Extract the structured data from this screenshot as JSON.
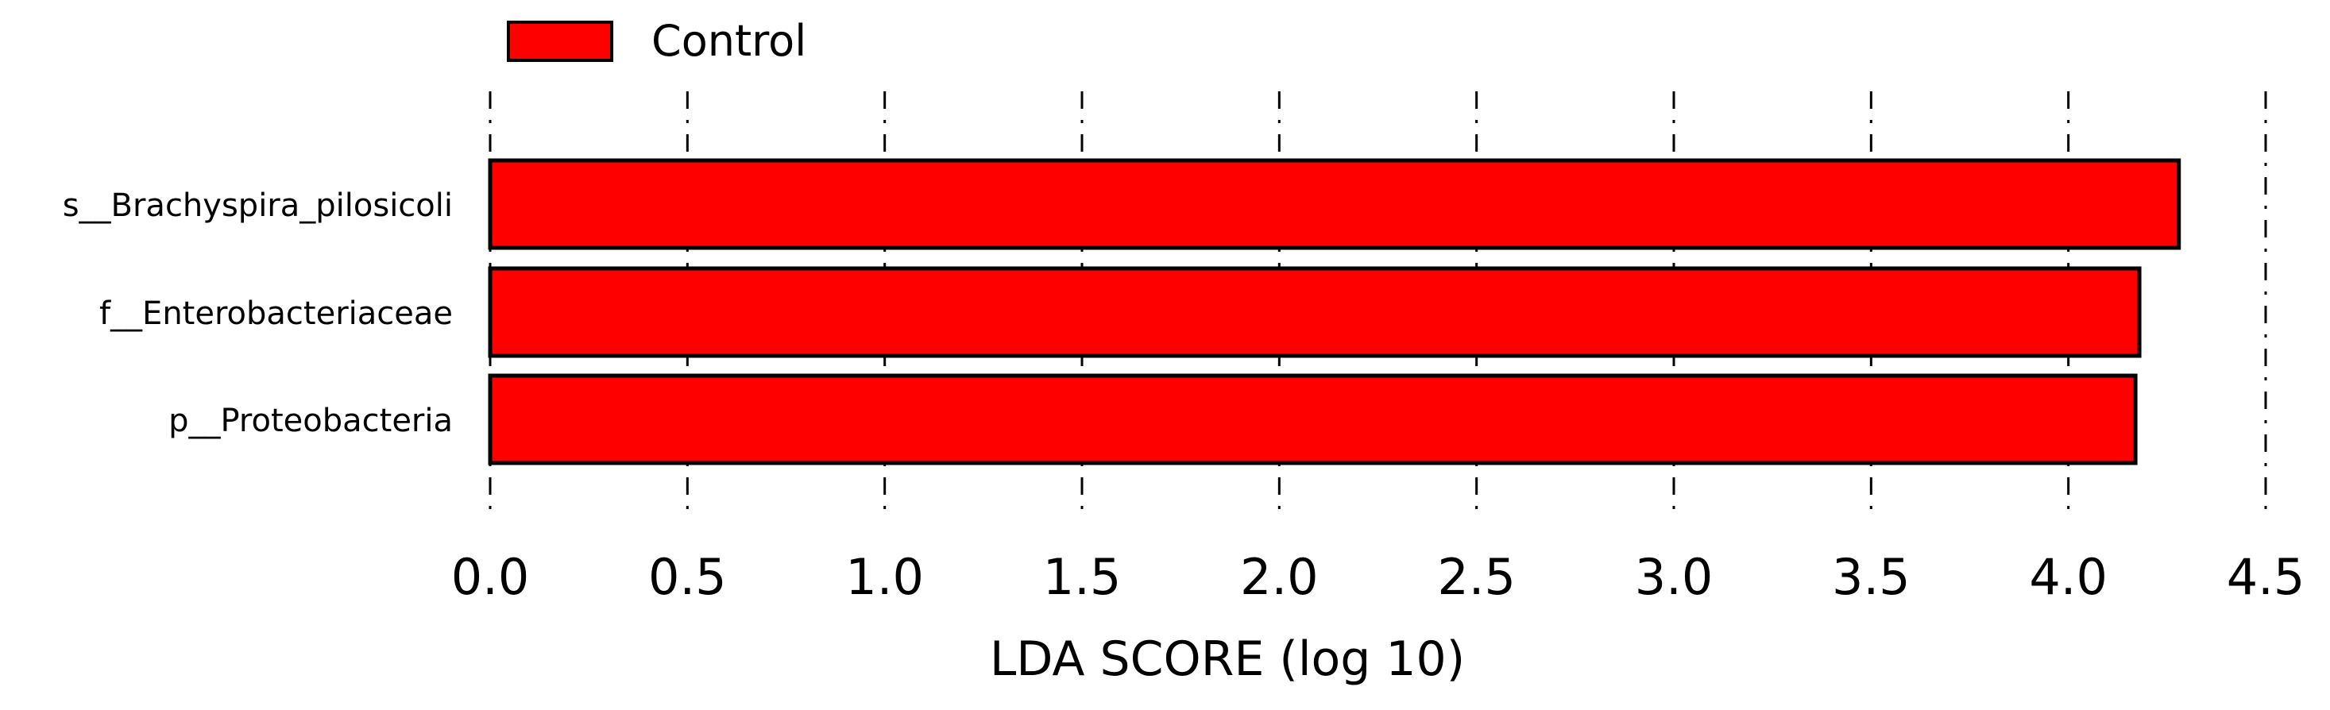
{
  "chart_data": {
    "type": "bar",
    "orientation": "horizontal",
    "categories": [
      "s__Brachyspira_pilosicoli",
      "f__Enterobacteriaceae",
      "p__Proteobacteria"
    ],
    "values": [
      4.28,
      4.18,
      4.17
    ],
    "series": [
      {
        "name": "Control",
        "values": [
          4.28,
          4.18,
          4.17
        ],
        "color": "#ff0000"
      }
    ],
    "xlabel": "LDA SCORE (log 10)",
    "ylabel": "",
    "xlim": [
      0.0,
      4.5
    ],
    "xticks": [
      0.0,
      0.5,
      1.0,
      1.5,
      2.0,
      2.5,
      3.0,
      3.5,
      4.0,
      4.5
    ],
    "xtick_labels": [
      "0.0",
      "0.5",
      "1.0",
      "1.5",
      "2.0",
      "2.5",
      "3.0",
      "3.5",
      "4.0",
      "4.5"
    ],
    "grid": "vertical dash-dot",
    "legend": {
      "position": "top-left",
      "entries": [
        "Control"
      ]
    },
    "colors": {
      "bar": "#ff0000",
      "edge": "#000000",
      "grid": "#000000"
    }
  }
}
